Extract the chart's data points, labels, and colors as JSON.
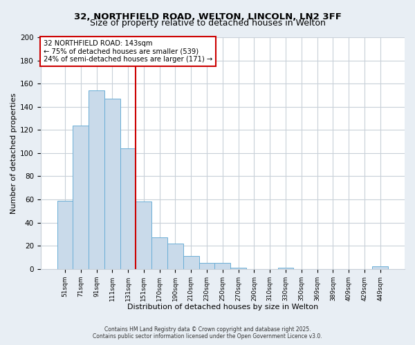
{
  "title": "32, NORTHFIELD ROAD, WELTON, LINCOLN, LN2 3FF",
  "subtitle": "Size of property relative to detached houses in Welton",
  "xlabel": "Distribution of detached houses by size in Welton",
  "ylabel": "Number of detached properties",
  "bar_labels": [
    "51sqm",
    "71sqm",
    "91sqm",
    "111sqm",
    "131sqm",
    "151sqm",
    "170sqm",
    "190sqm",
    "210sqm",
    "230sqm",
    "250sqm",
    "270sqm",
    "290sqm",
    "310sqm",
    "330sqm",
    "350sqm",
    "369sqm",
    "389sqm",
    "409sqm",
    "429sqm",
    "449sqm"
  ],
  "bar_values": [
    59,
    124,
    154,
    147,
    104,
    58,
    27,
    22,
    11,
    5,
    5,
    1,
    0,
    0,
    1,
    0,
    0,
    0,
    0,
    0,
    2
  ],
  "bar_color": "#c9daea",
  "bar_edge_color": "#6aaed6",
  "red_line_index": 5,
  "red_line_color": "#cc0000",
  "annotation_text": "32 NORTHFIELD ROAD: 143sqm\n← 75% of detached houses are smaller (539)\n24% of semi-detached houses are larger (171) →",
  "annotation_box_color": "#ffffff",
  "annotation_box_edge": "#cc0000",
  "ylim": [
    0,
    200
  ],
  "yticks": [
    0,
    20,
    40,
    60,
    80,
    100,
    120,
    140,
    160,
    180,
    200
  ],
  "footer1": "Contains HM Land Registry data © Crown copyright and database right 2025.",
  "footer2": "Contains public sector information licensed under the Open Government Licence v3.0.",
  "bg_color": "#e8eef4",
  "plot_bg_color": "#ffffff",
  "grid_color": "#c8d0d8"
}
